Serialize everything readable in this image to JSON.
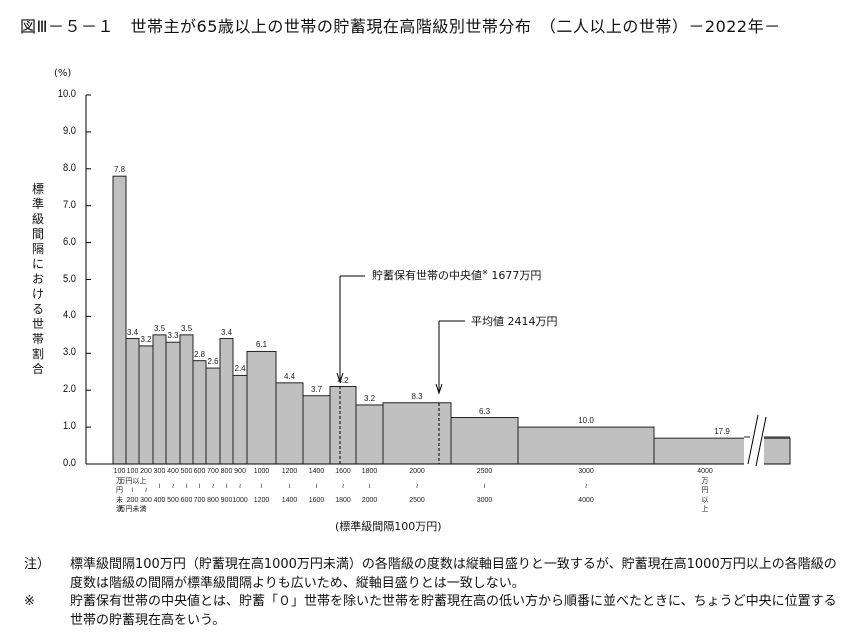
{
  "title": "図Ⅲ－５－１　世帯主が65歳以上の世帯の貯蓄現在高階級別世帯分布　（二人以上の世帯）－2022年－",
  "chart_data": {
    "type": "bar",
    "title": "世帯主が65歳以上の世帯の貯蓄現在高階級別世帯分布（二人以上の世帯）－2022年－",
    "ylabel": "標準級間隔における世帯割合",
    "yunit": "(%)",
    "xlabel": "(標準級間隔100万円)",
    "ylim": [
      0,
      10
    ],
    "yticks": [
      "0.0",
      "1.0",
      "2.0",
      "3.0",
      "4.0",
      "5.0",
      "6.0",
      "7.0",
      "8.0",
      "9.0",
      "10.0"
    ],
    "categories": [
      "100万円未満",
      "100～200万円",
      "200～300万円",
      "300～400",
      "400～500",
      "500～600",
      "600～700",
      "700～800",
      "800～900",
      "900～1000",
      "1000～1200",
      "1200～1400",
      "1400～1600",
      "1600～1800",
      "1800～2000",
      "2000～2500",
      "2500～3000",
      "3000～4000",
      "4000万円以上"
    ],
    "values": [
      7.8,
      3.4,
      3.2,
      3.5,
      3.3,
      3.5,
      2.8,
      2.6,
      3.4,
      2.4,
      6.1,
      4.4,
      3.7,
      4.2,
      3.2,
      8.3,
      6.3,
      10.0,
      17.9
    ],
    "bar_heights_on_axis": [
      7.8,
      3.4,
      3.2,
      3.5,
      3.3,
      3.5,
      2.8,
      2.6,
      3.4,
      2.4,
      3.05,
      2.2,
      1.85,
      2.1,
      1.6,
      1.66,
      1.26,
      1.0,
      0.7
    ],
    "annotations": [
      {
        "text": "貯蓄保有世帯の中央値※ 1677万円",
        "x": 1677
      },
      {
        "text": "平均値 2414万円",
        "x": 2414
      }
    ],
    "grid": false,
    "legend": null
  },
  "axis": {
    "pct": "(%)",
    "yticks": [
      "10.0",
      "9.0",
      "8.0",
      "7.0",
      "6.0",
      "5.0",
      "4.0",
      "3.0",
      "2.0",
      "1.0",
      "0.0"
    ],
    "ytitle": "標準級間隔における世帯割合",
    "xtitle": "(標準級間隔100万円)"
  },
  "xlabels": [
    [
      "100",
      "万",
      "円",
      "未",
      "満"
    ],
    [
      "100",
      "万円以上",
      "≀",
      "200",
      "万円未満"
    ],
    [
      "200",
      "",
      "≀",
      "300",
      ""
    ],
    [
      "300",
      "≀",
      "400"
    ],
    [
      "400",
      "≀",
      "500"
    ],
    [
      "500",
      "≀",
      "600"
    ],
    [
      "600",
      "≀",
      "700"
    ],
    [
      "700",
      "≀",
      "800"
    ],
    [
      "800",
      "≀",
      "900"
    ],
    [
      "900",
      "≀",
      "1000"
    ],
    [
      "1000",
      "≀",
      "1200"
    ],
    [
      "1200",
      "≀",
      "1400"
    ],
    [
      "1400",
      "≀",
      "1600"
    ],
    [
      "1600",
      "≀",
      "1800"
    ],
    [
      "1800",
      "≀",
      "2000"
    ],
    [
      "2000",
      "≀",
      "2500"
    ],
    [
      "2500",
      "≀",
      "3000"
    ],
    [
      "3000",
      "≀",
      "4000"
    ],
    [
      "4000",
      "万",
      "円",
      "以",
      "上"
    ]
  ],
  "annotations": {
    "median": {
      "label": "貯蓄保有世帯の中央値",
      "mark": "※",
      "value": " 1677万円"
    },
    "mean": {
      "label": "平均値 2414万円"
    }
  },
  "notes": [
    {
      "label": "注）",
      "text": "標準級間隔100万円（貯蓄現在高1000万円未満）の各階級の度数は縦軸目盛りと一致するが、貯蓄現在高1000万円以上の各階級の度数は階級の間隔が標準級間隔よりも広いため、縦軸目盛りとは一致しない。"
    },
    {
      "label": "※",
      "text": "貯蓄保有世帯の中央値とは、貯蓄「０」世帯を除いた世帯を貯蓄現在高の低い方から順番に並べたときに、ちょうど中央に位置する世帯の貯蓄現在高をいう。"
    }
  ],
  "colors": {
    "bar_fill": "#c0c0c0",
    "bar_stroke": "#222222",
    "axis": "#000000"
  }
}
